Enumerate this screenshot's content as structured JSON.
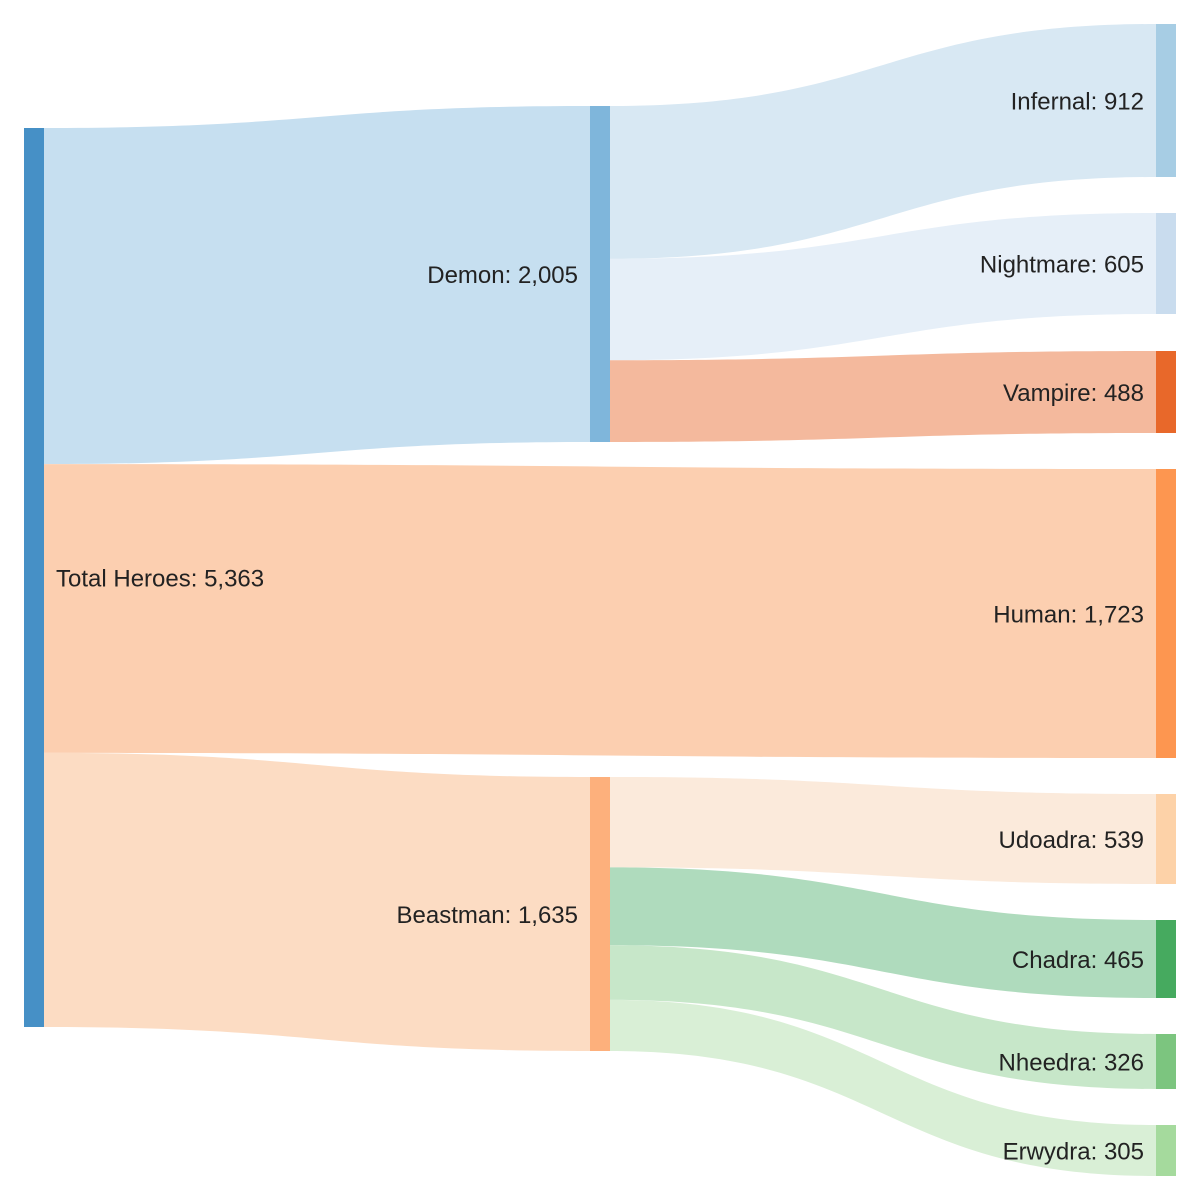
{
  "chart_data": {
    "type": "sankey",
    "nodes": [
      {
        "id": "total",
        "name": "Total Heroes",
        "value": 5363,
        "display_value": "5,363",
        "label": "Total Heroes: 5,363",
        "color": "#4690c6"
      },
      {
        "id": "demon",
        "name": "Demon",
        "value": 2005,
        "display_value": "2,005",
        "label": "Demon: 2,005",
        "color": "#7fb6db"
      },
      {
        "id": "human",
        "name": "Human",
        "value": 1723,
        "display_value": "1,723",
        "label": "Human: 1,723",
        "color": "#fd9650"
      },
      {
        "id": "beastman",
        "name": "Beastman",
        "value": 1635,
        "display_value": "1,635",
        "label": "Beastman: 1,635",
        "color": "#fdb07c"
      },
      {
        "id": "infernal",
        "name": "Infernal",
        "value": 912,
        "display_value": "912",
        "label": "Infernal: 912",
        "color": "#a7cde4"
      },
      {
        "id": "nightmare",
        "name": "Nightmare",
        "value": 605,
        "display_value": "605",
        "label": "Nightmare: 605",
        "color": "#c9dcee"
      },
      {
        "id": "vampire",
        "name": "Vampire",
        "value": 488,
        "display_value": "488",
        "label": "Vampire: 488",
        "color": "#e8682a"
      },
      {
        "id": "udoadra",
        "name": "Udoadra",
        "value": 539,
        "display_value": "539",
        "label": "Udoadra: 539",
        "color": "#fdd2a8"
      },
      {
        "id": "chadra",
        "name": "Chadra",
        "value": 465,
        "display_value": "465",
        "label": "Chadra: 465",
        "color": "#46aa5f"
      },
      {
        "id": "nheedra",
        "name": "Nheedra",
        "value": 326,
        "display_value": "326",
        "label": "Nheedra: 326",
        "color": "#7cc57f"
      },
      {
        "id": "erwydra",
        "name": "Erwydra",
        "value": 305,
        "display_value": "305",
        "label": "Erwydra: 305",
        "color": "#a5da9d"
      }
    ],
    "links": [
      {
        "source": "total",
        "target": "demon",
        "value": 2005,
        "color": "#c6dff0"
      },
      {
        "source": "total",
        "target": "human",
        "value": 1723,
        "color": "#fccfb0"
      },
      {
        "source": "total",
        "target": "beastman",
        "value": 1635,
        "color": "#fcdcc3"
      },
      {
        "source": "demon",
        "target": "infernal",
        "value": 912,
        "color": "#d8e8f3"
      },
      {
        "source": "demon",
        "target": "nightmare",
        "value": 605,
        "color": "#e6eff8"
      },
      {
        "source": "demon",
        "target": "vampire",
        "value": 488,
        "color": "#f4b99d"
      },
      {
        "source": "beastman",
        "target": "udoadra",
        "value": 539,
        "color": "#fbeadb"
      },
      {
        "source": "beastman",
        "target": "chadra",
        "value": 465,
        "color": "#afdbbd"
      },
      {
        "source": "beastman",
        "target": "nheedra",
        "value": 326,
        "color": "#c7e7c9"
      },
      {
        "source": "beastman",
        "target": "erwydra",
        "value": 305,
        "color": "#d9efd6"
      }
    ]
  }
}
